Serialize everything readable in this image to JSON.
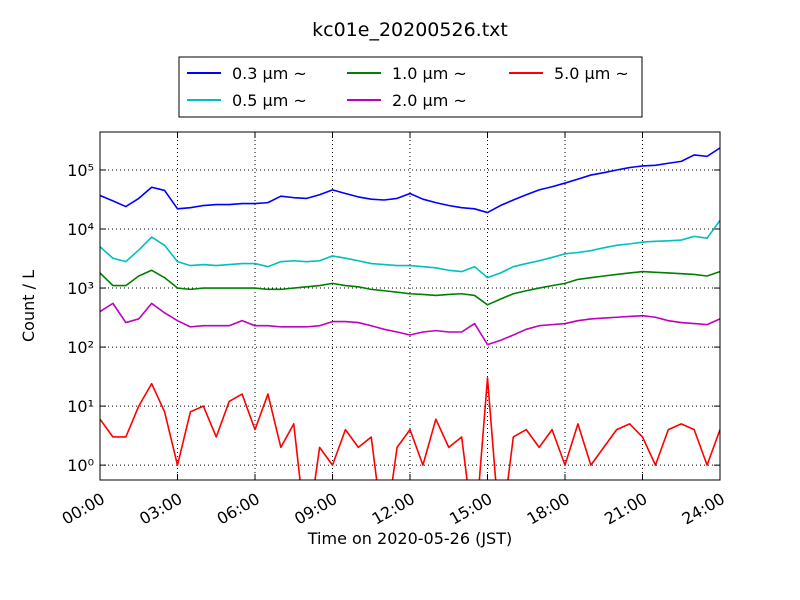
{
  "chart_data": {
    "type": "line",
    "title": "kc01e_20200526.txt",
    "x_label": "Time on 2020-05-26 (JST)",
    "y_label": "Count / L",
    "log_y": true,
    "grid": true,
    "legend": "upper center",
    "x": [
      0,
      0.5,
      1,
      1.5,
      2,
      2.5,
      3,
      3.5,
      4,
      4.5,
      5,
      5.5,
      6,
      6.5,
      7,
      7.5,
      8,
      8.5,
      9,
      9.5,
      10,
      10.5,
      11,
      11.5,
      12,
      12.5,
      13,
      13.5,
      14,
      14.5,
      15,
      15.5,
      16,
      16.5,
      17,
      17.5,
      18,
      18.5,
      19,
      19.5,
      20,
      20.5,
      21,
      21.5,
      22,
      22.5,
      23,
      23.5,
      24
    ],
    "xlim": [
      0,
      24
    ],
    "xticks": [
      {
        "value": 0,
        "label": "00:00"
      },
      {
        "value": 3,
        "label": "03:00"
      },
      {
        "value": 6,
        "label": "06:00"
      },
      {
        "value": 9,
        "label": "09:00"
      },
      {
        "value": 12,
        "label": "12:00"
      },
      {
        "value": 15,
        "label": "15:00"
      },
      {
        "value": 18,
        "label": "18:00"
      },
      {
        "value": 21,
        "label": "21:00"
      },
      {
        "value": 24,
        "label": "24:00"
      }
    ],
    "ylim": [
      0.56,
      440000
    ],
    "yticks": [
      {
        "value": 1,
        "label": "10⁰"
      },
      {
        "value": 10,
        "label": "10¹"
      },
      {
        "value": 100,
        "label": "10²"
      },
      {
        "value": 1000,
        "label": "10³"
      },
      {
        "value": 10000,
        "label": "10⁴"
      },
      {
        "value": 100000,
        "label": "10⁵"
      }
    ],
    "series": [
      {
        "name": "0.3 μm ~",
        "color": "#0000ff",
        "values": [
          37000,
          30000,
          24000,
          33000,
          51000,
          45000,
          22000,
          23000,
          25000,
          26000,
          26000,
          27000,
          27000,
          28000,
          36000,
          34000,
          33000,
          38000,
          46000,
          40000,
          35000,
          32000,
          31000,
          33000,
          40000,
          32000,
          28000,
          25000,
          23000,
          22000,
          19000,
          25000,
          31000,
          38000,
          46000,
          52000,
          60000,
          70000,
          82000,
          90000,
          100000,
          110000,
          117000,
          120000,
          130000,
          140000,
          180000,
          170000,
          236000
        ]
      },
      {
        "name": "0.5 μm ~",
        "color": "#00bfbf",
        "values": [
          5000,
          3200,
          2800,
          4400,
          7300,
          5300,
          2800,
          2400,
          2500,
          2400,
          2500,
          2600,
          2600,
          2300,
          2800,
          2900,
          2800,
          2900,
          3500,
          3200,
          2900,
          2600,
          2500,
          2400,
          2400,
          2300,
          2200,
          2000,
          1900,
          2300,
          1500,
          1800,
          2300,
          2600,
          2900,
          3300,
          3800,
          4000,
          4300,
          4800,
          5300,
          5600,
          6000,
          6200,
          6300,
          6500,
          7500,
          7000,
          14000
        ]
      },
      {
        "name": "1.0 μm ~",
        "color": "#008000",
        "values": [
          1800,
          1100,
          1100,
          1600,
          2000,
          1500,
          1000,
          950,
          1000,
          1000,
          1000,
          1000,
          1000,
          950,
          950,
          1000,
          1050,
          1100,
          1200,
          1100,
          1050,
          950,
          900,
          850,
          800,
          780,
          750,
          780,
          800,
          750,
          520,
          650,
          800,
          900,
          1000,
          1100,
          1200,
          1400,
          1500,
          1600,
          1700,
          1800,
          1900,
          1850,
          1800,
          1750,
          1700,
          1600,
          1900
        ]
      },
      {
        "name": "2.0 μm ~",
        "color": "#bf00bf",
        "values": [
          400,
          550,
          260,
          300,
          550,
          380,
          280,
          220,
          230,
          230,
          230,
          280,
          230,
          230,
          220,
          220,
          220,
          230,
          270,
          270,
          260,
          230,
          200,
          180,
          160,
          180,
          190,
          180,
          180,
          250,
          110,
          130,
          160,
          200,
          230,
          240,
          250,
          280,
          300,
          310,
          320,
          330,
          340,
          320,
          280,
          260,
          250,
          240,
          300
        ]
      },
      {
        "name": "5.0 μm ~",
        "color": "#ff0000",
        "values": [
          6,
          3,
          3,
          10,
          24,
          8,
          1,
          8,
          10,
          3,
          12,
          16,
          4,
          16,
          2,
          5,
          0,
          2,
          1,
          4,
          2,
          3,
          0,
          2,
          4,
          1,
          6,
          2,
          3,
          0,
          30,
          0,
          3,
          4,
          2,
          4,
          1,
          5,
          1,
          2,
          4,
          5,
          3,
          1,
          4,
          5,
          4,
          1,
          4
        ]
      }
    ]
  }
}
